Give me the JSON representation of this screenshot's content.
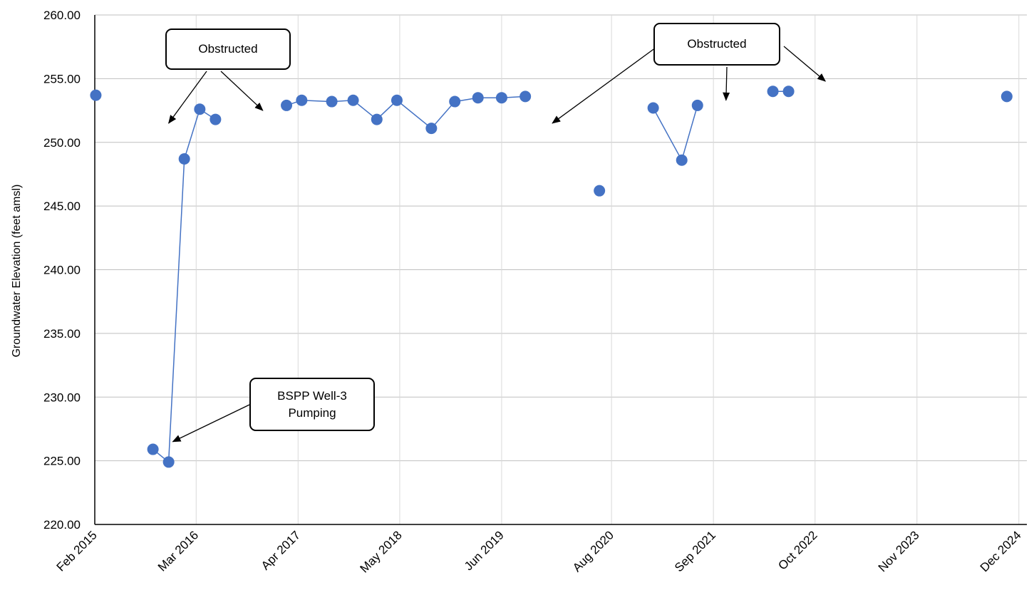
{
  "chart_data": {
    "type": "line",
    "ylabel": "Groundwater Elevation (feet amsl)",
    "xlabel": "",
    "ylim": [
      220.0,
      260.0
    ],
    "yticks": [
      "220.00",
      "225.00",
      "230.00",
      "235.00",
      "240.00",
      "245.00",
      "250.00",
      "255.00",
      "260.00"
    ],
    "xlim": [
      "2015-02",
      "2025-01"
    ],
    "xticks": [
      "Feb 2015",
      "Mar 2016",
      "Apr 2017",
      "May 2018",
      "Jun 2019",
      "Aug 2020",
      "Sep 2021",
      "Oct 2022",
      "Nov 2023",
      "Dec 2024"
    ],
    "xtick_dates": [
      "2015-02-01",
      "2016-03-01",
      "2017-04-01",
      "2018-05-01",
      "2019-06-01",
      "2020-08-01",
      "2021-09-01",
      "2022-10-01",
      "2023-11-01",
      "2024-12-01"
    ],
    "grid": true,
    "marker_color": "#4472C4",
    "line_color": "#4472C4",
    "segments": [
      [
        {
          "x": "2015-02-05",
          "y": 253.7
        }
      ],
      [
        {
          "x": "2015-09-15",
          "y": 225.9
        },
        {
          "x": "2015-11-15",
          "y": 224.9
        },
        {
          "x": "2016-01-15",
          "y": 248.7
        },
        {
          "x": "2016-03-15",
          "y": 252.6
        },
        {
          "x": "2016-05-15",
          "y": 251.8
        }
      ],
      [
        {
          "x": "2017-02-15",
          "y": 252.9
        },
        {
          "x": "2017-04-15",
          "y": 253.3
        },
        {
          "x": "2017-08-10",
          "y": 253.2
        },
        {
          "x": "2017-11-01",
          "y": 253.3
        },
        {
          "x": "2018-02-01",
          "y": 251.8
        },
        {
          "x": "2018-04-20",
          "y": 253.3
        },
        {
          "x": "2018-09-01",
          "y": 251.1
        },
        {
          "x": "2018-12-01",
          "y": 253.2
        },
        {
          "x": "2019-03-01",
          "y": 253.5
        },
        {
          "x": "2019-06-01",
          "y": 253.5
        },
        {
          "x": "2019-09-01",
          "y": 253.6
        }
      ],
      [
        {
          "x": "2020-06-15",
          "y": 246.2
        }
      ],
      [
        {
          "x": "2021-01-10",
          "y": 252.7
        },
        {
          "x": "2021-05-01",
          "y": 248.6
        },
        {
          "x": "2021-07-01",
          "y": 252.9
        }
      ],
      [
        {
          "x": "2022-04-20",
          "y": 254.0
        },
        {
          "x": "2022-06-20",
          "y": 254.0
        }
      ],
      [
        {
          "x": "2024-10-15",
          "y": 253.6
        }
      ]
    ],
    "annotations": [
      {
        "text": "Obstructed",
        "arrow_targets": [
          {
            "x": "2015-11-15",
            "y": 251.5
          },
          {
            "x": "2016-11-15",
            "y": 252.5
          }
        ]
      },
      {
        "text": "Obstructed",
        "arrow_targets": [
          {
            "x": "2019-12-15",
            "y": 251.5
          },
          {
            "x": "2021-10-20",
            "y": 253.3
          },
          {
            "x": "2022-11-10",
            "y": 254.8
          }
        ]
      },
      {
        "text": [
          "BSPP Well-3",
          "Pumping"
        ],
        "arrow_targets": [
          {
            "x": "2015-12-01",
            "y": 226.5
          }
        ]
      }
    ]
  }
}
